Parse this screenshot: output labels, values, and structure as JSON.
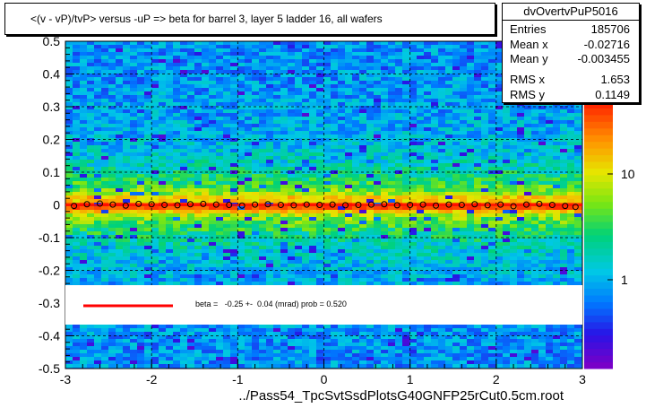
{
  "title": "<(v - vP)/tvP> versus  -uP => beta for barrel 3, layer 5 ladder 16, all wafers",
  "stats": {
    "name": "dvOvertvPuP5016",
    "rows": [
      {
        "label": "Entries",
        "value": "185706"
      },
      {
        "label": "Mean x",
        "value": "-0.02716"
      },
      {
        "label": "Mean y",
        "value": "-0.003455"
      },
      {
        "label": "RMS x",
        "value": "1.653"
      },
      {
        "label": "RMS y",
        "value": "0.1149"
      }
    ]
  },
  "fit_text": "beta =   -0.25 +-  0.04 (mrad) prob = 0.520",
  "xaxis_title": "../Pass54_TpcSvtSsdPlotsG40GNFP25rCut0.5cm.root",
  "colors": {
    "fit_line": "#ff0000",
    "profile_marker": "#000000",
    "grid": "#000000"
  },
  "chart_data": {
    "type": "heatmap",
    "xlim": [
      -3,
      3
    ],
    "ylim": [
      -0.5,
      0.5
    ],
    "x_ticks": [
      "-3",
      "-2",
      "-1",
      "0",
      "1",
      "2",
      "3"
    ],
    "y_ticks": [
      "0.5",
      "0.4",
      "0.3",
      "0.2",
      "0.1",
      "0",
      "-0.1",
      "-0.2",
      "-0.3",
      "-0.4",
      "-0.5"
    ],
    "z_scale": "log",
    "z_ticks": [
      "1",
      "10"
    ],
    "grid": true,
    "profile": {
      "x": [
        -2.9,
        -2.75,
        -2.6,
        -2.45,
        -2.3,
        -2.15,
        -2.0,
        -1.85,
        -1.7,
        -1.55,
        -1.4,
        -1.25,
        -1.1,
        -0.95,
        -0.8,
        -0.65,
        -0.5,
        -0.35,
        -0.2,
        -0.05,
        0.1,
        0.25,
        0.4,
        0.55,
        0.7,
        0.85,
        1.0,
        1.15,
        1.3,
        1.45,
        1.6,
        1.75,
        1.9,
        2.05,
        2.2,
        2.35,
        2.5,
        2.65,
        2.8,
        2.92
      ],
      "y": [
        -0.003,
        0.002,
        0.004,
        0.001,
        -0.002,
        0.003,
        0.002,
        0.0,
        -0.001,
        0.002,
        0.003,
        0.001,
        0.0,
        -0.002,
        0.001,
        0.002,
        0.0,
        -0.001,
        0.001,
        0.0,
        0.001,
        -0.001,
        0.0,
        0.001,
        0.002,
        -0.001,
        0.0,
        0.001,
        -0.002,
        0.001,
        0.0,
        0.002,
        -0.001,
        0.001,
        -0.004,
        0.001,
        0.003,
        0.0,
        -0.003,
        -0.006
      ]
    },
    "fit": {
      "beta_mrad": -0.25,
      "error_mrad": 0.04,
      "prob": 0.52
    }
  }
}
